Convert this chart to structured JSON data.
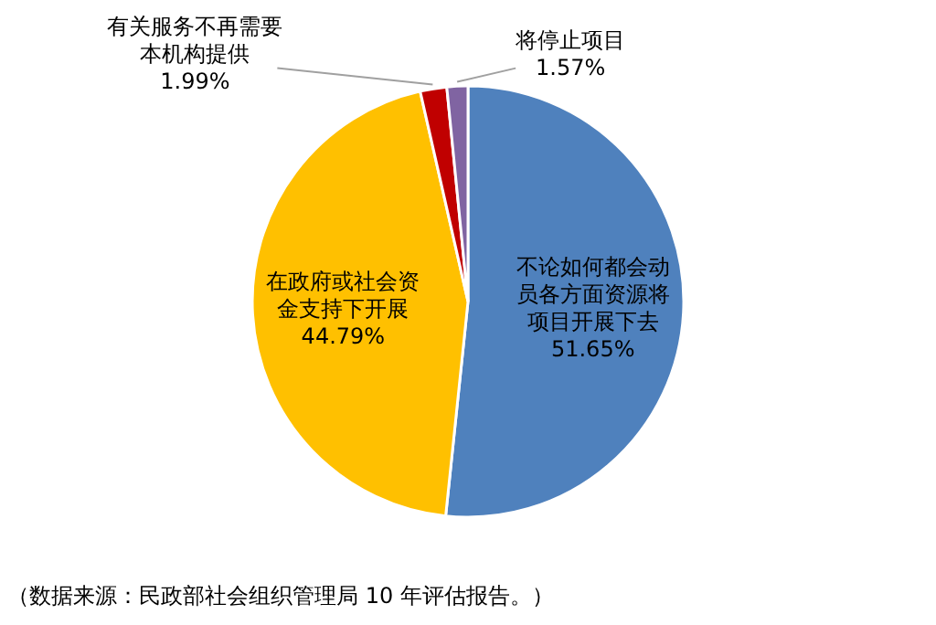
{
  "chart_data": {
    "type": "pie",
    "categories": [
      "不论如何都会动员各方面资源将项目开展下去",
      "在政府或社会资金支持下开展",
      "有关服务不再需要本机构提供",
      "将停止项目"
    ],
    "values": [
      51.65,
      44.79,
      1.99,
      1.57
    ],
    "value_labels": [
      "51.65%",
      "44.79%",
      "1.99%",
      "1.57%"
    ],
    "colors": [
      "#4f81bd",
      "#ffc000",
      "#c00000",
      "#8064a2"
    ],
    "annotations": [
      "（数据来源：民政部社会组织管理局 10 年评估报告。）"
    ]
  }
}
